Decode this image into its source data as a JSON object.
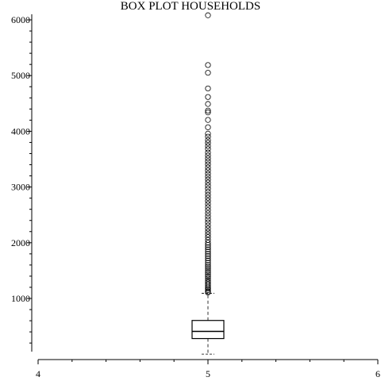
{
  "chart_data": {
    "type": "box",
    "title": "BOX PLOT HOUSEHOLDS",
    "xlabel": "",
    "ylabel": "",
    "xlim": [
      4,
      6
    ],
    "ylim": [
      -40,
      6100
    ],
    "x_ticks": [
      4,
      5,
      6
    ],
    "x_tick_labels": [
      "4",
      "5",
      "6"
    ],
    "y_ticks": [
      1000,
      2000,
      3000,
      4000,
      5000,
      6000
    ],
    "y_tick_labels": [
      "1000",
      "2000",
      "3000",
      "4000",
      "5000",
      "6000"
    ],
    "grid": false,
    "series": [
      {
        "x": 5,
        "whisker_low": 1,
        "q1": 280,
        "median": 409,
        "q3": 605,
        "whisker_high": 1092,
        "outliers": [
          6082,
          5189,
          5050,
          4769,
          4616,
          4490,
          4372,
          4339,
          4204,
          4072,
          3958,
          3903,
          3842,
          3790,
          3735,
          3681,
          3620,
          3566,
          3513,
          3460,
          3405,
          3350,
          3296,
          3240,
          3187,
          3133,
          3080,
          3025,
          2970,
          2915,
          2860,
          2805,
          2750,
          2695,
          2640,
          2585,
          2530,
          2475,
          2420,
          2365,
          2310,
          2255,
          2200,
          2150,
          2100,
          2050,
          2000,
          1960,
          1920,
          1880,
          1840,
          1800,
          1760,
          1720,
          1680,
          1640,
          1600,
          1565,
          1530,
          1495,
          1460,
          1425,
          1390,
          1355,
          1320,
          1290,
          1260,
          1230,
          1200,
          1175,
          1150,
          1125,
          1105
        ]
      }
    ]
  }
}
